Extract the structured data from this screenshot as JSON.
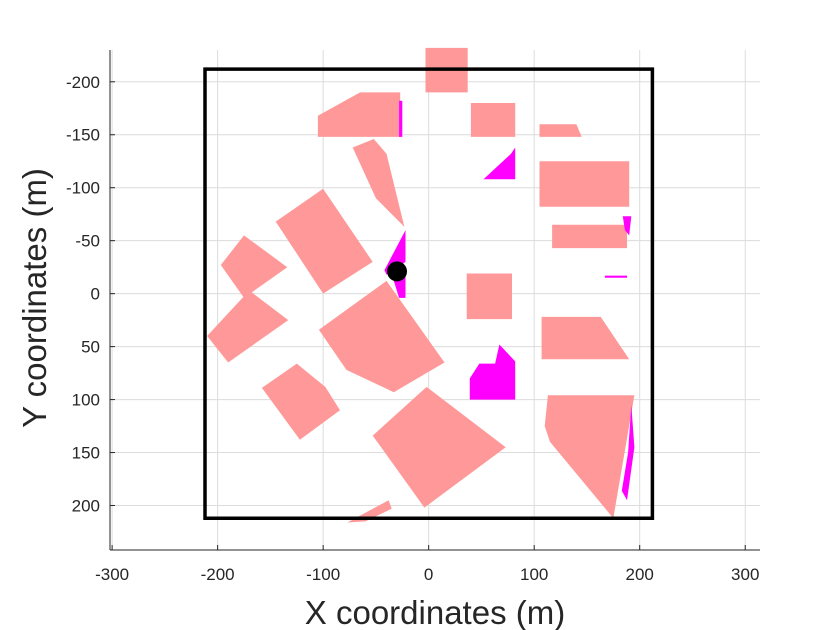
{
  "chart_data": {
    "type": "scatter",
    "title": "",
    "xlabel": "X coordinates (m)",
    "ylabel": "Y coordinates (m)",
    "xlim": [
      -302,
      314
    ],
    "ylim": [
      -230,
      242
    ],
    "y_reversed": true,
    "grid": true,
    "legend": "none",
    "xticks": [
      -300,
      -200,
      -100,
      0,
      100,
      200,
      300
    ],
    "yticks": [
      -200,
      -150,
      -100,
      -50,
      0,
      50,
      100,
      150,
      200
    ],
    "colors": {
      "building": "#ff9999",
      "shadow": "#ff00ff",
      "boundary": "#000000",
      "point": "#000000",
      "grid": "#dcdcdc",
      "axis": "#262626"
    },
    "boundary": [
      [
        -212,
        -212
      ],
      [
        212,
        -212
      ],
      [
        212,
        212
      ],
      [
        -212,
        212
      ]
    ],
    "point": [
      -30,
      -21
    ],
    "buildings": [
      [
        [
          -105,
          -168
        ],
        [
          -65,
          -190
        ],
        [
          -27,
          -190
        ],
        [
          -27,
          -148
        ],
        [
          -105,
          -148
        ]
      ],
      [
        [
          -3,
          -232
        ],
        [
          37,
          -232
        ],
        [
          37,
          -190
        ],
        [
          -3,
          -190
        ]
      ],
      [
        [
          40,
          -180
        ],
        [
          82,
          -180
        ],
        [
          82,
          -148
        ],
        [
          40,
          -148
        ]
      ],
      [
        [
          105,
          -160
        ],
        [
          140,
          -160
        ],
        [
          145,
          -148
        ],
        [
          105,
          -148
        ]
      ],
      [
        [
          -72,
          -138
        ],
        [
          -52,
          -146
        ],
        [
          -40,
          -132
        ],
        [
          -23,
          -63
        ],
        [
          -50,
          -90
        ]
      ],
      [
        [
          105,
          -125
        ],
        [
          190,
          -125
        ],
        [
          190,
          -82
        ],
        [
          105,
          -82
        ]
      ],
      [
        [
          -100,
          -99
        ],
        [
          -145,
          -68
        ],
        [
          -100,
          0
        ],
        [
          -53,
          -30
        ]
      ],
      [
        [
          117,
          -65
        ],
        [
          188,
          -65
        ],
        [
          188,
          -43
        ],
        [
          117,
          -43
        ]
      ],
      [
        [
          -175,
          -55
        ],
        [
          -197,
          -27
        ],
        [
          -175,
          4
        ],
        [
          -134,
          -25
        ]
      ],
      [
        [
          36,
          -19
        ],
        [
          79,
          -19
        ],
        [
          79,
          24
        ],
        [
          36,
          24
        ]
      ],
      [
        [
          -170,
          -3
        ],
        [
          -210,
          40
        ],
        [
          -190,
          65
        ],
        [
          -133,
          25
        ]
      ],
      [
        [
          -40,
          -12
        ],
        [
          -104,
          34
        ],
        [
          -78,
          72
        ],
        [
          -33,
          93
        ],
        [
          15,
          65
        ]
      ],
      [
        [
          107,
          22
        ],
        [
          163,
          22
        ],
        [
          190,
          62
        ],
        [
          107,
          62
        ]
      ],
      [
        [
          -125,
          66
        ],
        [
          -158,
          89
        ],
        [
          -122,
          138
        ],
        [
          -84,
          110
        ],
        [
          -98,
          88
        ]
      ],
      [
        [
          -2,
          88
        ],
        [
          -53,
          134
        ],
        [
          -4,
          202
        ],
        [
          73,
          145
        ]
      ],
      [
        [
          113,
          96
        ],
        [
          195,
          96
        ],
        [
          175,
          212
        ],
        [
          115,
          140
        ],
        [
          110,
          125
        ]
      ],
      [
        [
          -77,
          216
        ],
        [
          -38,
          195
        ],
        [
          -35,
          203
        ],
        [
          -60,
          215
        ]
      ]
    ],
    "shadows": [
      [
        [
          -28,
          -182
        ],
        [
          -25,
          -182
        ],
        [
          -25,
          -148
        ],
        [
          -28,
          -148
        ]
      ],
      [
        [
          52,
          -108
        ],
        [
          78,
          -132
        ],
        [
          82,
          -138
        ],
        [
          82,
          -108
        ]
      ],
      [
        [
          -22,
          -60
        ],
        [
          -22,
          -30
        ],
        [
          -40,
          -18
        ],
        [
          -42,
          -22
        ]
      ],
      [
        [
          -33,
          -12
        ],
        [
          -22,
          -18
        ],
        [
          -22,
          4
        ],
        [
          -28,
          4
        ]
      ],
      [
        [
          184,
          -73
        ],
        [
          192,
          -73
        ],
        [
          190,
          -55
        ],
        [
          186,
          -60
        ]
      ],
      [
        [
          167,
          -17
        ],
        [
          188,
          -17
        ],
        [
          188,
          -15
        ],
        [
          167,
          -15
        ]
      ],
      [
        [
          39,
          80
        ],
        [
          48,
          66
        ],
        [
          63,
          66
        ],
        [
          67,
          48
        ],
        [
          82,
          64
        ],
        [
          82,
          100
        ],
        [
          39,
          100
        ]
      ],
      [
        [
          192,
          105
        ],
        [
          195,
          145
        ],
        [
          188,
          195
        ],
        [
          183,
          186
        ],
        [
          189,
          150
        ]
      ]
    ]
  }
}
